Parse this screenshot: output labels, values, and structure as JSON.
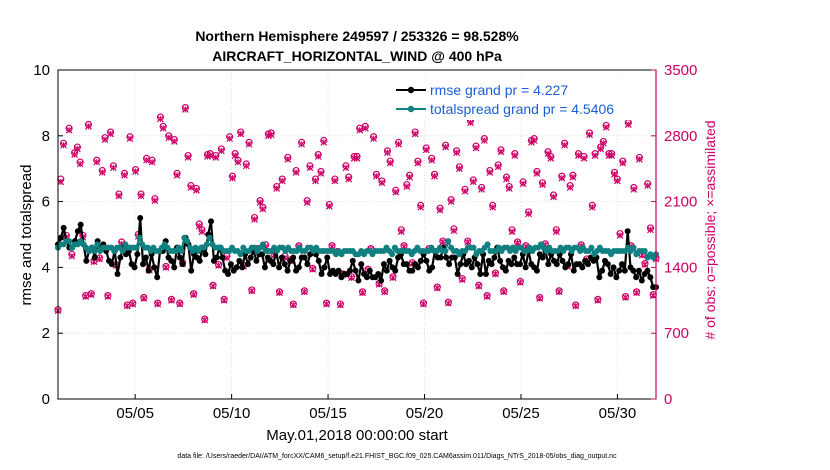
{
  "chart_data": {
    "type": "line",
    "title_line1": "Northern Hemisphere 249597 / 253326 = 98.528%",
    "title_line2": "AIRCRAFT_HORIZONTAL_WIND @ 400 hPa",
    "xlabel": "May.01,2018 00:00:00 start",
    "ylabel": "rmse and totalspread",
    "y2label": "# of obs: o=possible; ×=assimilated",
    "footer": "data file: /Users/raeder/DAI/ATM_forcXX/CAM6_setup/f.e21.FHIST_BGC.f09_025.CAM6assim.011/Diags_NTrS_2018-05/obs_diag_output.nc",
    "x_range_days": [
      1,
      32
    ],
    "xticks": [
      {
        "day": 5,
        "label": "05/05"
      },
      {
        "day": 10,
        "label": "05/10"
      },
      {
        "day": 15,
        "label": "05/15"
      },
      {
        "day": 20,
        "label": "05/20"
      },
      {
        "day": 25,
        "label": "05/25"
      },
      {
        "day": 30,
        "label": "05/30"
      }
    ],
    "ylim": [
      0,
      10
    ],
    "yticks": [
      "0",
      "2",
      "4",
      "6",
      "8",
      "10"
    ],
    "y2lim": [
      0,
      3500
    ],
    "y2ticks": [
      "0",
      "700",
      "1400",
      "2100",
      "2800",
      "3500"
    ],
    "series": [
      {
        "name": "rmse",
        "legend": "rmse grand pr = 4.227",
        "color": "#000000",
        "marker": "circle",
        "values": [
          4.7,
          4.9,
          5.2,
          4.8,
          4.6,
          4.6,
          4.8,
          5.1,
          5.3,
          4.7,
          4.2,
          4.5,
          4.6,
          4.3,
          4.8,
          4.6,
          4.7,
          4.5,
          4.2,
          4.1,
          4.5,
          3.8,
          4.3,
          4.6,
          4.4,
          4.5,
          4.1,
          4.0,
          4.4,
          5.5,
          4.1,
          4.3,
          3.9,
          4.4,
          4.0,
          3.7,
          4.5,
          4.5,
          4.8,
          4.3,
          4.2,
          4.0,
          4.6,
          4.3,
          4.1,
          4.9,
          4.7,
          3.9,
          4.4,
          4.3,
          4.2,
          4.6,
          4.4,
          5.0,
          5.4,
          4.2,
          4.3,
          4.6,
          4.3,
          3.9,
          3.8,
          4.1,
          3.9,
          4.0,
          4.2,
          4.0,
          4.4,
          4.1,
          4.3,
          4.5,
          4.2,
          4.4,
          4.4,
          4.0,
          4.3,
          4.2,
          4.1,
          4.5,
          4.0,
          4.3,
          4.1,
          3.9,
          4.2,
          4.3,
          3.9,
          4.0,
          4.3,
          4.3,
          4.1,
          4.4,
          4.5,
          4.4,
          4.2,
          3.8,
          4.0,
          4.3,
          3.8,
          3.9,
          3.8,
          3.9,
          3.7,
          3.8,
          3.8,
          3.9,
          4.2,
          3.9,
          3.6,
          4.1,
          3.8,
          3.7,
          3.9,
          3.7,
          3.7,
          3.8,
          3.6,
          4.1,
          3.9,
          4.2,
          4.0,
          3.9,
          4.3,
          4.4,
          4.1,
          4.1,
          3.9,
          3.9,
          4.1,
          4.0,
          4.2,
          4.4,
          4.2,
          3.9,
          4.0,
          4.5,
          4.3,
          4.3,
          4.6,
          4.3,
          4.1,
          4.3,
          4.3,
          3.8,
          4.1,
          4.4,
          4.1,
          4.2,
          4.0,
          4.3,
          4.1,
          3.8,
          4.4,
          3.8,
          4.2,
          4.1,
          4.3,
          4.6,
          4.2,
          4.0,
          3.9,
          4.2,
          4.1,
          4.3,
          4.1,
          4.1,
          4.4,
          4.0,
          4.5,
          4.1,
          4.0,
          3.9,
          4.4,
          4.3,
          4.5,
          4.1,
          4.4,
          4.2,
          4.1,
          4.4,
          4.2,
          4.0,
          4.1,
          4.4,
          3.9,
          4.1,
          4.1,
          4.0,
          4.2,
          4.1,
          4.3,
          4.2,
          4.3,
          3.7,
          3.9,
          4.2,
          4.1,
          3.8,
          4.0,
          3.7,
          3.9,
          4.1,
          3.9,
          5.1,
          4.0,
          3.9,
          3.7,
          3.9,
          3.6,
          3.8,
          3.9,
          3.7,
          3.4,
          3.4
        ]
      },
      {
        "name": "totalspread",
        "legend": "totalspread grand pr = 4.5406",
        "color": "#108080",
        "marker": "circle",
        "values": [
          4.6,
          4.7,
          4.7,
          4.8,
          4.8,
          4.6,
          4.7,
          4.7,
          4.8,
          4.7,
          4.6,
          4.5,
          4.6,
          4.5,
          4.7,
          4.5,
          4.6,
          4.6,
          4.6,
          4.6,
          4.5,
          4.6,
          4.6,
          4.5,
          4.7,
          4.6,
          4.6,
          4.6,
          4.6,
          4.9,
          4.7,
          4.6,
          4.6,
          4.5,
          4.6,
          4.5,
          4.5,
          4.6,
          4.7,
          4.6,
          4.5,
          4.5,
          4.5,
          4.6,
          4.5,
          4.9,
          4.8,
          4.6,
          4.5,
          4.6,
          4.5,
          4.6,
          4.6,
          4.7,
          4.9,
          4.7,
          4.6,
          4.6,
          4.6,
          4.5,
          4.5,
          4.5,
          4.6,
          4.5,
          4.5,
          4.4,
          4.6,
          4.5,
          4.5,
          4.6,
          4.6,
          4.5,
          4.6,
          4.7,
          4.5,
          4.5,
          4.5,
          4.6,
          4.5,
          4.6,
          4.6,
          4.5,
          4.6,
          4.5,
          4.5,
          4.5,
          4.6,
          4.5,
          4.5,
          4.6,
          4.6,
          4.5,
          4.6,
          4.5,
          4.5,
          4.5,
          4.5,
          4.5,
          4.5,
          4.4,
          4.5,
          4.4,
          4.5,
          4.5,
          4.5,
          4.5,
          4.4,
          4.4,
          4.5,
          4.4,
          4.5,
          4.5,
          4.4,
          4.5,
          4.5,
          4.5,
          4.5,
          4.6,
          4.5,
          4.4,
          4.6,
          4.5,
          4.5,
          4.5,
          4.5,
          4.5,
          4.4,
          4.5,
          4.6,
          4.5,
          4.5,
          4.5,
          4.5,
          4.6,
          4.5,
          4.5,
          4.6,
          4.5,
          4.5,
          4.8,
          4.6,
          4.5,
          4.5,
          4.4,
          4.5,
          4.5,
          4.6,
          4.6,
          4.6,
          4.4,
          4.5,
          4.5,
          4.6,
          4.7,
          4.5,
          4.5,
          4.5,
          4.6,
          4.5,
          4.6,
          4.6,
          4.5,
          4.6,
          4.5,
          4.6,
          4.6,
          4.5,
          4.5,
          4.6,
          4.5,
          4.6,
          4.6,
          4.7,
          4.6,
          4.5,
          4.6,
          4.5,
          4.5,
          4.5,
          4.6,
          4.5,
          4.6,
          4.6,
          4.5,
          4.6,
          4.6,
          4.5,
          4.6,
          4.5,
          4.5,
          4.6,
          4.4,
          4.5,
          4.6,
          4.5,
          4.5,
          4.5,
          4.4,
          4.5,
          4.5,
          4.5,
          4.5,
          4.5,
          4.6,
          4.5,
          4.6,
          4.4,
          4.5,
          4.5,
          4.5,
          4.3,
          4.4,
          4.3,
          4.4
        ]
      },
      {
        "name": "possible",
        "color": "#cc0066",
        "marker": "o",
        "values": [
          950,
          2340,
          2720,
          1740,
          2880,
          1540,
          2620,
          2680,
          2520,
          1740,
          1100,
          2920,
          1120,
          1470,
          2540,
          1500,
          2430,
          2780,
          1100,
          2840,
          2480,
          1430,
          2180,
          1670,
          2400,
          1000,
          2790,
          1020,
          2440,
          1750,
          2180,
          1080,
          2560,
          1380,
          2540,
          2130,
          1020,
          3000,
          2900,
          1410,
          2800,
          1060,
          2760,
          2400,
          1020,
          1450,
          3100,
          2590,
          2270,
          1120,
          2240,
          1860,
          1800,
          850,
          2600,
          2610,
          1210,
          2590,
          1430,
          2660,
          1060,
          1520,
          2790,
          2370,
          2610,
          2540,
          2840,
          1420,
          2500,
          2730,
          1160,
          1930,
          1600,
          2110,
          2040,
          1640,
          2820,
          2830,
          1540,
          2260,
          1140,
          2340,
          1520,
          2570,
          1480,
          1010,
          2430,
          1630,
          2730,
          1150,
          2110,
          2480,
          1390,
          2340,
          2600,
          2420,
          2750,
          1020,
          2070,
          1630,
          2340,
          1570,
          1010,
          1330,
          2480,
          2360,
          1300,
          2580,
          2580,
          2880,
          1140,
          2900,
          1380,
          1600,
          2790,
          2390,
          1230,
          2320,
          1150,
          2640,
          2530,
          1300,
          2220,
          2730,
          1800,
          1630,
          2280,
          2380,
          1450,
          2840,
          2530,
          2060,
          1020,
          2670,
          1600,
          2560,
          2390,
          1190,
          2030,
          1680,
          2700,
          1030,
          2120,
          1810,
          2640,
          2470,
          1280,
          2230,
          1680,
          2960,
          2330,
          2690,
          1210,
          2250,
          2770,
          1100,
          2430,
          2060,
          1340,
          2490,
          2650,
          1150,
          2360,
          2260,
          1800,
          2610,
          1670,
          1250,
          2310,
          1630,
          1990,
          2750,
          2770,
          2420,
          1080,
          2300,
          1650,
          2630,
          2580,
          2170,
          1800,
          1150,
          2370,
          2720,
          1420,
          2270,
          2380,
          1000,
          2610,
          1640,
          2580,
          1490,
          2830,
          2060,
          2610,
          1060,
          2680,
          2740,
          2910,
          2610,
          2610,
          2410,
          2340,
          1760,
          2530,
          1090,
          2940,
          1630,
          2250,
          1140,
          2570,
          1540,
          1440,
          2290,
          1820,
          1110,
          1500
        ]
      },
      {
        "name": "assimilated",
        "color": "#cc0066",
        "marker": "x",
        "values": [
          940,
          2310,
          2700,
          1720,
          2860,
          1520,
          2600,
          2660,
          2500,
          1720,
          1090,
          2900,
          1110,
          1460,
          2520,
          1490,
          2410,
          2760,
          1090,
          2820,
          2460,
          1420,
          2160,
          1650,
          2380,
          990,
          2770,
          1010,
          2420,
          1730,
          2160,
          1070,
          2540,
          1370,
          2520,
          2110,
          1010,
          2980,
          2880,
          1400,
          2780,
          1050,
          2740,
          2380,
          1010,
          1440,
          3080,
          2570,
          2250,
          1110,
          2220,
          1840,
          1780,
          840,
          2580,
          2590,
          1200,
          2570,
          1420,
          2640,
          1050,
          1500,
          2770,
          2350,
          2590,
          2520,
          2820,
          1410,
          2480,
          2710,
          1150,
          1910,
          1590,
          2090,
          2020,
          1620,
          2800,
          2810,
          1530,
          2240,
          1130,
          2320,
          1500,
          2550,
          1470,
          1000,
          2410,
          1620,
          2710,
          1140,
          2090,
          2460,
          1380,
          2320,
          2580,
          2400,
          2730,
          1010,
          2050,
          1620,
          2320,
          1560,
          1000,
          1320,
          2460,
          2340,
          1290,
          2560,
          2560,
          2860,
          1130,
          2880,
          1370,
          1590,
          2770,
          2370,
          1220,
          2300,
          1140,
          2620,
          2510,
          1290,
          2200,
          2710,
          1780,
          1620,
          2260,
          2360,
          1440,
          2820,
          2510,
          2040,
          1010,
          2650,
          1590,
          2540,
          2370,
          1180,
          2010,
          1670,
          2680,
          1020,
          2100,
          1790,
          2620,
          2450,
          1270,
          2210,
          1670,
          2940,
          2310,
          2670,
          1200,
          2230,
          2750,
          1090,
          2410,
          2040,
          1330,
          2470,
          2630,
          1140,
          2340,
          2240,
          1780,
          2590,
          1660,
          1240,
          2290,
          1620,
          1970,
          2730,
          2750,
          2400,
          1070,
          2280,
          1640,
          2610,
          2560,
          2150,
          1780,
          1140,
          2350,
          2700,
          1410,
          2250,
          2360,
          990,
          2590,
          1630,
          2560,
          1480,
          2810,
          2040,
          2590,
          1050,
          2660,
          2720,
          2890,
          2590,
          2590,
          2390,
          2320,
          1740,
          2510,
          1080,
          2920,
          1620,
          2230,
          1130,
          2550,
          1530,
          1430,
          2270,
          1800,
          1100,
          1490
        ]
      }
    ]
  }
}
